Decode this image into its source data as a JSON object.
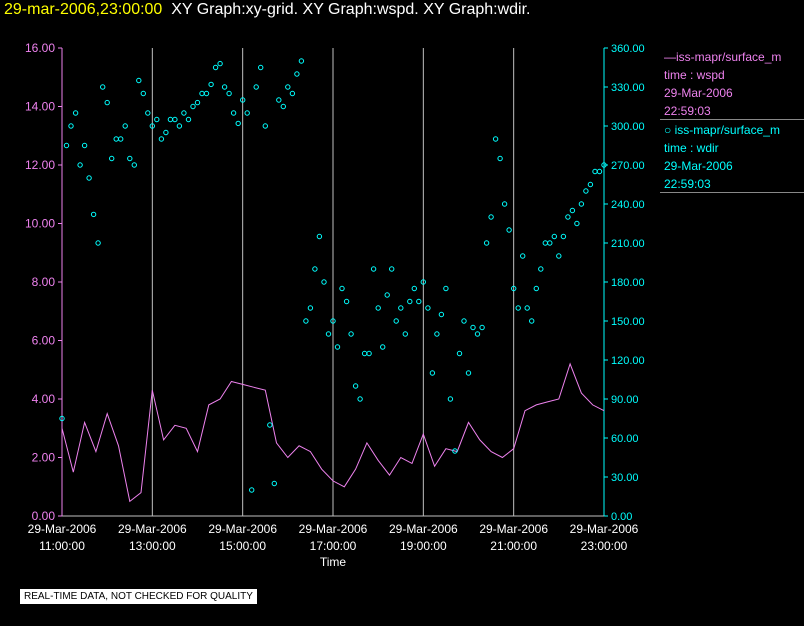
{
  "header": {
    "timestamp": "29-mar-2006,23:00:00",
    "titles": "XY Graph:xy-grid.  XY Graph:wspd.  XY Graph:wdir."
  },
  "legend": {
    "wspd": {
      "source": "—iss-mapr/surface_m",
      "var": "time : wspd",
      "date": "29-Mar-2006",
      "time": "22:59:03"
    },
    "wdir": {
      "source": "iss-mapr/surface_m",
      "var": "time : wdir",
      "date": "29-Mar-2006",
      "time": "22:59:03"
    }
  },
  "notice": "REAL-TIME DATA, NOT CHECKED FOR QUALITY",
  "colors": {
    "wspd": "#ee82ee",
    "wdir": "#00ffff",
    "axis_text": "#ffffff",
    "grid": "#c0c0c0"
  },
  "chart_data": {
    "type": "line",
    "xlabel": "Time",
    "x_ticks": [
      {
        "hour": 11,
        "date": "29-Mar-2006",
        "time": "11:00:00"
      },
      {
        "hour": 13,
        "date": "29-Mar-2006",
        "time": "13:00:00"
      },
      {
        "hour": 15,
        "date": "29-Mar-2006",
        "time": "15:00:00"
      },
      {
        "hour": 17,
        "date": "29-Mar-2006",
        "time": "17:00:00"
      },
      {
        "hour": 19,
        "date": "29-Mar-2006",
        "time": "19:00:00"
      },
      {
        "hour": 21,
        "date": "29-Mar-2006",
        "time": "21:00:00"
      },
      {
        "hour": 23,
        "date": "29-Mar-2006",
        "time": "23:00:00"
      }
    ],
    "xlim": [
      11,
      23
    ],
    "y_left": {
      "label": "wspd",
      "lim": [
        0,
        16
      ],
      "ticks": [
        "0.00",
        "2.00",
        "4.00",
        "6.00",
        "8.00",
        "10.00",
        "12.00",
        "14.00",
        "16.00"
      ]
    },
    "y_right": {
      "label": "wdir",
      "lim": [
        0,
        360
      ],
      "ticks": [
        "0.00",
        "30.00",
        "60.00",
        "90.00",
        "120.00",
        "150.00",
        "180.00",
        "210.00",
        "240.00",
        "270.00",
        "300.00",
        "330.00",
        "360.00"
      ]
    },
    "series": [
      {
        "name": "wspd",
        "style": "line",
        "axis": "left",
        "x": [
          11.0,
          11.25,
          11.5,
          11.75,
          12.0,
          12.25,
          12.5,
          12.75,
          13.0,
          13.25,
          13.5,
          13.75,
          14.0,
          14.25,
          14.5,
          14.75,
          15.0,
          15.25,
          15.5,
          15.75,
          16.0,
          16.25,
          16.5,
          16.75,
          17.0,
          17.25,
          17.5,
          17.75,
          18.0,
          18.25,
          18.5,
          18.75,
          19.0,
          19.25,
          19.5,
          19.75,
          20.0,
          20.25,
          20.5,
          20.75,
          21.0,
          21.25,
          21.5,
          21.75,
          22.0,
          22.25,
          22.5,
          22.75,
          23.0
        ],
        "values": [
          3.0,
          1.5,
          3.2,
          2.2,
          3.5,
          2.4,
          0.5,
          0.8,
          4.3,
          2.6,
          3.1,
          3.0,
          2.2,
          3.8,
          4.0,
          4.6,
          4.5,
          4.4,
          4.3,
          2.5,
          2.0,
          2.4,
          2.2,
          1.6,
          1.2,
          1.0,
          1.6,
          2.5,
          1.9,
          1.4,
          2.0,
          1.8,
          2.8,
          1.7,
          2.3,
          2.2,
          3.2,
          2.6,
          2.2,
          2.0,
          2.3,
          3.6,
          3.8,
          3.9,
          4.0,
          5.2,
          4.2,
          3.8,
          3.6
        ]
      },
      {
        "name": "wdir",
        "style": "scatter",
        "axis": "right",
        "x": [
          11.0,
          11.1,
          11.2,
          11.3,
          11.4,
          11.5,
          11.6,
          11.7,
          11.8,
          11.9,
          12.0,
          12.1,
          12.2,
          12.3,
          12.4,
          12.5,
          12.6,
          12.7,
          12.8,
          12.9,
          13.0,
          13.1,
          13.2,
          13.3,
          13.4,
          13.5,
          13.6,
          13.7,
          13.8,
          13.9,
          14.0,
          14.1,
          14.2,
          14.3,
          14.4,
          14.5,
          14.6,
          14.7,
          14.8,
          14.9,
          15.0,
          15.1,
          15.2,
          15.3,
          15.4,
          15.5,
          15.6,
          15.7,
          15.8,
          15.9,
          16.0,
          16.1,
          16.2,
          16.3,
          16.4,
          16.5,
          16.6,
          16.7,
          16.8,
          16.9,
          17.0,
          17.1,
          17.2,
          17.3,
          17.4,
          17.5,
          17.6,
          17.7,
          17.8,
          17.9,
          18.0,
          18.1,
          18.2,
          18.3,
          18.4,
          18.5,
          18.6,
          18.7,
          18.8,
          18.9,
          19.0,
          19.1,
          19.2,
          19.3,
          19.4,
          19.5,
          19.6,
          19.7,
          19.8,
          19.9,
          20.0,
          20.1,
          20.2,
          20.3,
          20.4,
          20.5,
          20.6,
          20.7,
          20.8,
          20.9,
          21.0,
          21.1,
          21.2,
          21.3,
          21.4,
          21.5,
          21.6,
          21.7,
          21.8,
          21.9,
          22.0,
          22.1,
          22.2,
          22.3,
          22.4,
          22.5,
          22.6,
          22.7,
          22.8,
          22.9,
          23.0
        ],
        "values": [
          75,
          285,
          300,
          310,
          270,
          285,
          260,
          232,
          210,
          330,
          318,
          275,
          290,
          290,
          300,
          275,
          270,
          335,
          325,
          310,
          300,
          305,
          290,
          295,
          305,
          305,
          300,
          310,
          305,
          315,
          318,
          325,
          325,
          332,
          345,
          348,
          330,
          325,
          310,
          302,
          320,
          310,
          20,
          330,
          345,
          300,
          70,
          25,
          320,
          315,
          330,
          325,
          340,
          350,
          150,
          160,
          190,
          215,
          180,
          140,
          150,
          130,
          175,
          165,
          140,
          100,
          90,
          125,
          125,
          190,
          160,
          130,
          170,
          190,
          150,
          160,
          140,
          165,
          175,
          165,
          180,
          160,
          110,
          140,
          155,
          175,
          90,
          50,
          125,
          150,
          110,
          145,
          140,
          145,
          210,
          230,
          290,
          275,
          240,
          220,
          175,
          160,
          200,
          160,
          150,
          175,
          190,
          210,
          210,
          215,
          200,
          215,
          230,
          235,
          225,
          240,
          250,
          255,
          265,
          265,
          270
        ]
      }
    ]
  }
}
